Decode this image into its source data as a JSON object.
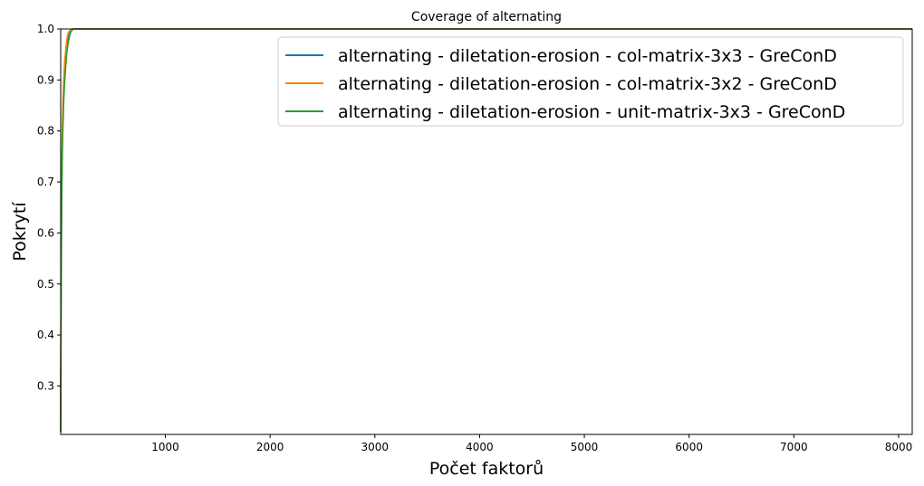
{
  "chart_data": {
    "type": "line",
    "title": "Coverage of alternating",
    "xlabel": "Počet faktorů",
    "ylabel": "Pokrytí",
    "xlim": [
      1,
      8130
    ],
    "ylim": [
      0.205,
      1.0
    ],
    "xticks": [
      1000,
      2000,
      3000,
      4000,
      5000,
      6000,
      7000,
      8000
    ],
    "yticks": [
      0.3,
      0.4,
      0.5,
      0.6,
      0.7,
      0.8,
      0.9,
      1.0
    ],
    "grid": false,
    "legend_position": "top-right",
    "series": [
      {
        "name": "alternating - diletation-erosion - col-matrix-3x3 - GreConD",
        "color": "#1f77b4",
        "x": [
          1,
          2,
          5,
          10,
          15,
          20,
          30,
          40,
          50,
          60,
          70,
          80,
          90,
          100,
          120,
          150,
          200,
          8130
        ],
        "y": [
          0.21,
          0.32,
          0.5,
          0.68,
          0.76,
          0.82,
          0.88,
          0.92,
          0.95,
          0.97,
          0.98,
          0.99,
          0.995,
          0.998,
          1.0,
          1.0,
          1.0,
          1.0
        ]
      },
      {
        "name": "alternating - diletation-erosion - col-matrix-3x2 - GreConD",
        "color": "#ff7f0e",
        "x": [
          1,
          2,
          5,
          10,
          15,
          20,
          30,
          40,
          50,
          60,
          70,
          80,
          100,
          120,
          150,
          200,
          8130
        ],
        "y": [
          0.21,
          0.33,
          0.52,
          0.7,
          0.78,
          0.84,
          0.9,
          0.94,
          0.96,
          0.98,
          0.99,
          0.995,
          0.999,
          1.0,
          1.0,
          1.0,
          1.0
        ]
      },
      {
        "name": "alternating - diletation-erosion - unit-matrix-3x3 - GreConD",
        "color": "#2ca02c",
        "x": [
          1,
          2,
          5,
          10,
          15,
          20,
          30,
          40,
          50,
          60,
          70,
          80,
          90,
          100,
          120,
          150,
          200,
          8130
        ],
        "y": [
          0.21,
          0.3,
          0.47,
          0.64,
          0.73,
          0.79,
          0.86,
          0.9,
          0.93,
          0.955,
          0.97,
          0.98,
          0.99,
          0.995,
          1.0,
          1.0,
          1.0,
          1.0
        ]
      }
    ]
  }
}
